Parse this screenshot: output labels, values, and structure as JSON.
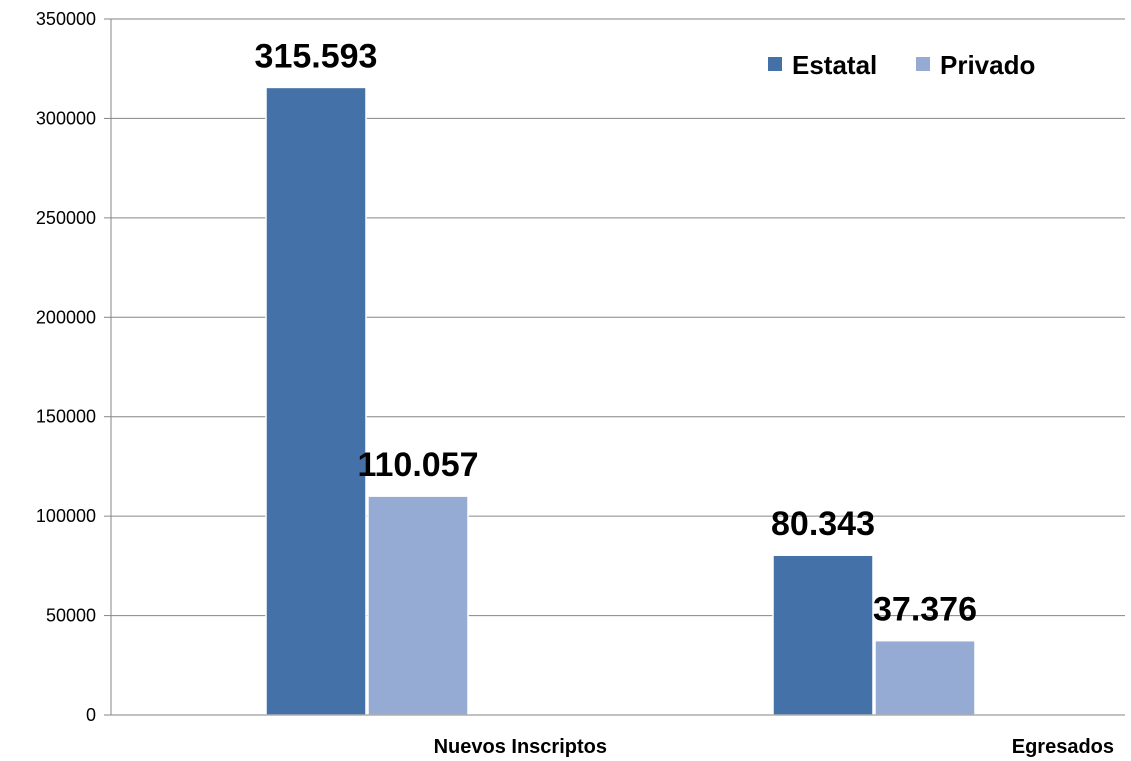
{
  "chart_data": {
    "type": "bar",
    "categories": [
      "Nuevos Inscriptos",
      "Egresados"
    ],
    "series": [
      {
        "name": "Estatal",
        "values": [
          315593,
          80343
        ],
        "labels": [
          "315.593",
          "80.343"
        ],
        "color": "#4472A8"
      },
      {
        "name": "Privado",
        "values": [
          110057,
          37376
        ],
        "labels": [
          "110.057",
          "37.376"
        ],
        "color": "#95ABD3"
      }
    ],
    "ylim": [
      0,
      350000
    ],
    "yticks": [
      0,
      50000,
      100000,
      150000,
      200000,
      250000,
      300000,
      350000
    ],
    "ytick_labels": [
      "0",
      "50000",
      "100000",
      "150000",
      "200000",
      "250000",
      "300000",
      "350000"
    ],
    "grid": true,
    "legend_position": "top-right",
    "title": "",
    "xlabel": "",
    "ylabel": ""
  }
}
